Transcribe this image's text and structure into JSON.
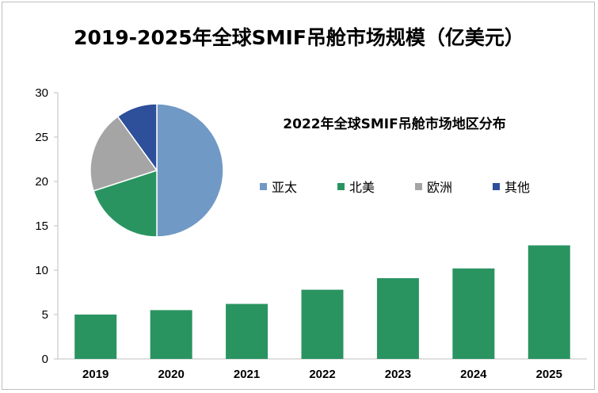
{
  "chart_data": [
    {
      "type": "bar",
      "title": "2019-2025年全球SMIF吊舱市场规模（亿美元）",
      "categories": [
        "2019",
        "2020",
        "2021",
        "2022",
        "2023",
        "2024",
        "2025"
      ],
      "values": [
        5.0,
        5.5,
        6.2,
        7.8,
        9.1,
        10.2,
        12.8
      ],
      "ylim": [
        0,
        30
      ],
      "yticks": [
        "0",
        "5",
        "10",
        "15",
        "20",
        "25",
        "30"
      ],
      "bar_color": "#2a9461",
      "grid": false
    },
    {
      "type": "pie",
      "title": "2022年全球SMIF吊舱市场地区分布",
      "labels": [
        "亚太",
        "北美",
        "欧洲",
        "其他"
      ],
      "values": [
        50,
        20,
        20,
        10
      ],
      "colors": [
        "#7199c6",
        "#2a9461",
        "#a5a5a5",
        "#2e4f9a"
      ],
      "legend": "right"
    }
  ]
}
